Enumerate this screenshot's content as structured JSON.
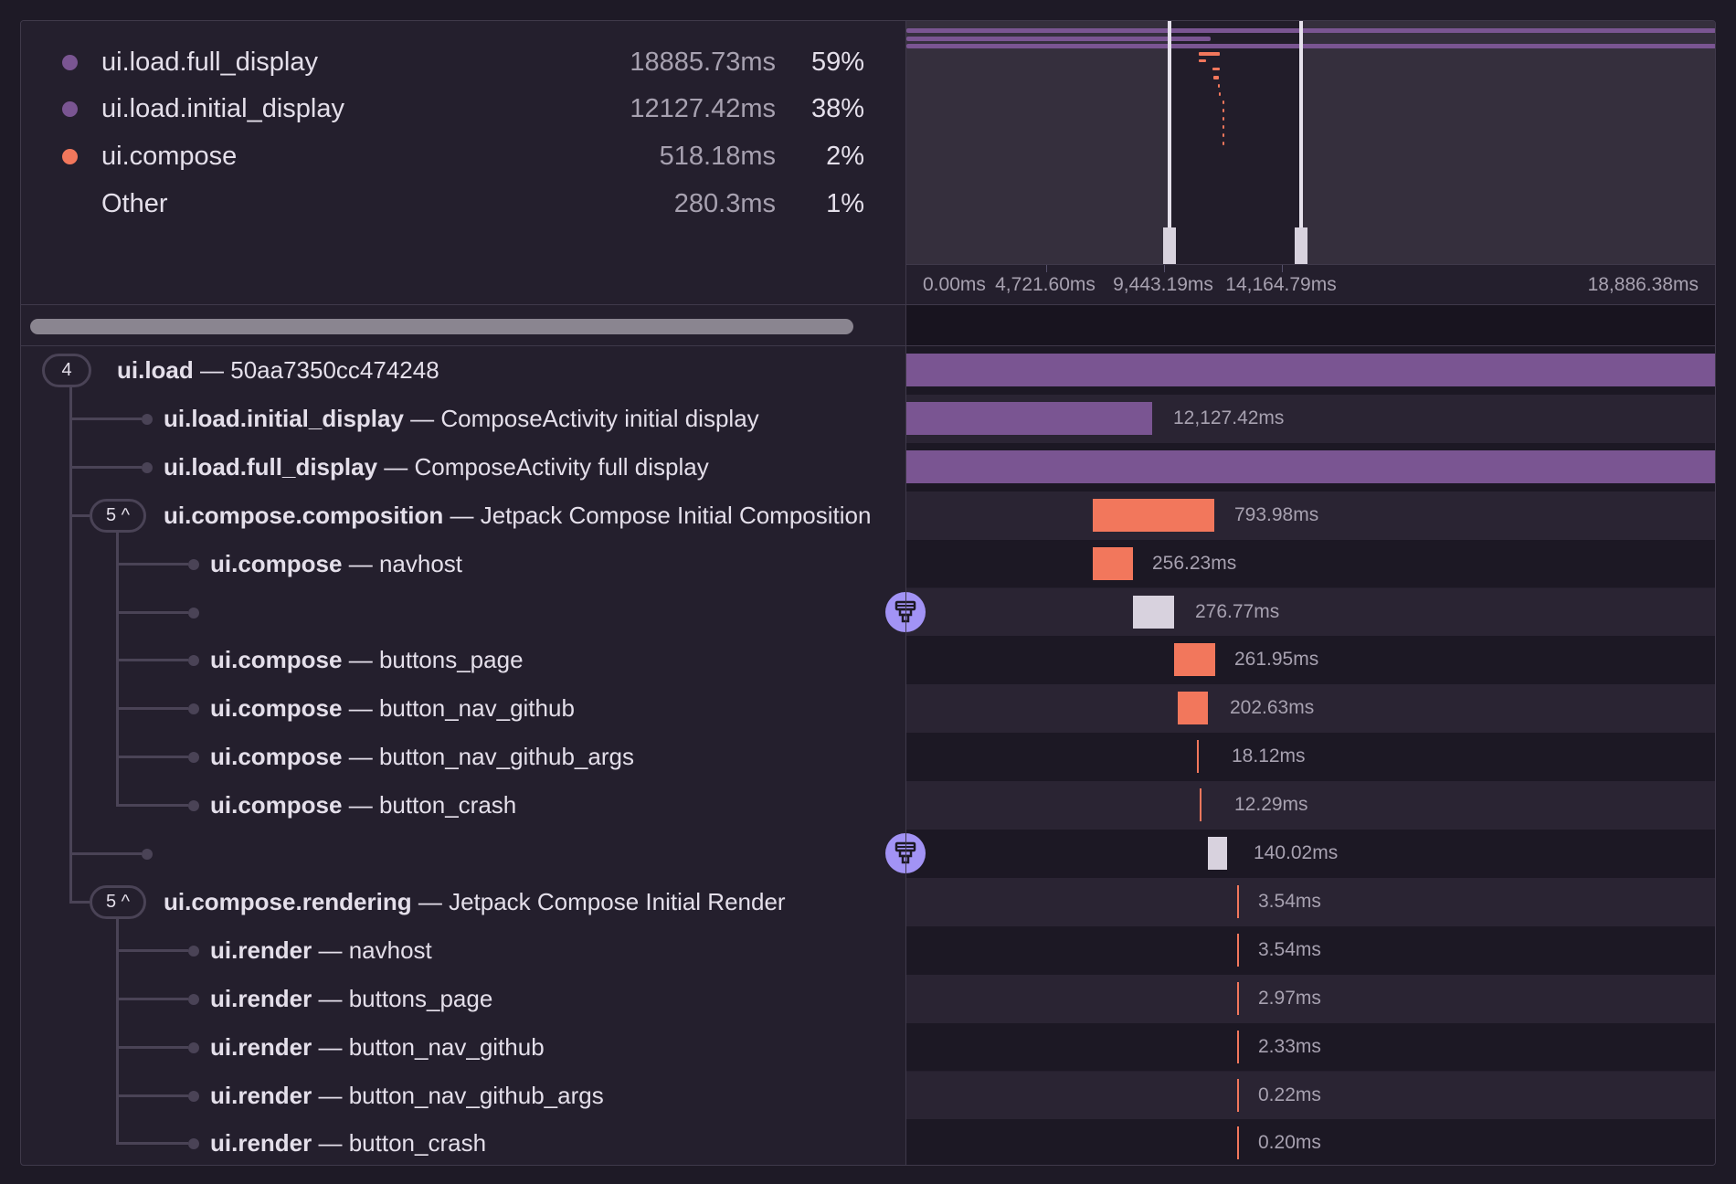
{
  "legend": [
    {
      "name": "ui.load.full_display",
      "duration": "18885.73ms",
      "percent": "59%",
      "color": "#7a5592"
    },
    {
      "name": "ui.load.initial_display",
      "duration": "12127.42ms",
      "percent": "38%",
      "color": "#7a5592"
    },
    {
      "name": "ui.compose",
      "duration": "518.18ms",
      "percent": "2%",
      "color": "#f2775c"
    },
    {
      "name": "Other",
      "duration": "280.3ms",
      "percent": "1%",
      "color": ""
    }
  ],
  "axis": {
    "ticks": [
      "0.00ms",
      "4,721.60ms",
      "9,443.19ms",
      "14,164.79ms",
      "18,886.38ms"
    ]
  },
  "colors": {
    "load": "#7a5592",
    "compose": "#f2775c",
    "other": "#d8d2de",
    "pin": "#a293f5"
  },
  "rows": [
    {
      "op": "ui.load",
      "desc": "50aa7350cc474248",
      "badge": "4",
      "duration": ""
    },
    {
      "op": "ui.load.initial_display",
      "desc": "ComposeActivity initial display",
      "duration": "12,127.42ms"
    },
    {
      "op": "ui.load.full_display",
      "desc": "ComposeActivity full display",
      "duration": ""
    },
    {
      "op": "ui.compose.composition",
      "desc": "Jetpack Compose Initial Composition",
      "badge": "5 ^",
      "duration": "793.98ms"
    },
    {
      "op": "ui.compose",
      "desc": "navhost",
      "duration": "256.23ms"
    },
    {
      "op": "",
      "desc": "",
      "duration": "276.77ms",
      "icon": "missing-instrumentation-icon"
    },
    {
      "op": "ui.compose",
      "desc": "buttons_page",
      "duration": "261.95ms"
    },
    {
      "op": "ui.compose",
      "desc": "button_nav_github",
      "duration": "202.63ms"
    },
    {
      "op": "ui.compose",
      "desc": "button_nav_github_args",
      "duration": "18.12ms"
    },
    {
      "op": "ui.compose",
      "desc": "button_crash",
      "duration": "12.29ms"
    },
    {
      "op": "",
      "desc": "",
      "duration": "140.02ms",
      "icon": "missing-instrumentation-icon"
    },
    {
      "op": "ui.compose.rendering",
      "desc": "Jetpack Compose Initial Render",
      "badge": "5 ^",
      "duration": "3.54ms"
    },
    {
      "op": "ui.render",
      "desc": "navhost",
      "duration": "3.54ms"
    },
    {
      "op": "ui.render",
      "desc": "buttons_page",
      "duration": "2.97ms"
    },
    {
      "op": "ui.render",
      "desc": "button_nav_github",
      "duration": "2.33ms"
    },
    {
      "op": "ui.render",
      "desc": "button_nav_github_args",
      "duration": "0.22ms"
    },
    {
      "op": "ui.render",
      "desc": "button_crash",
      "duration": "0.20ms"
    }
  ]
}
